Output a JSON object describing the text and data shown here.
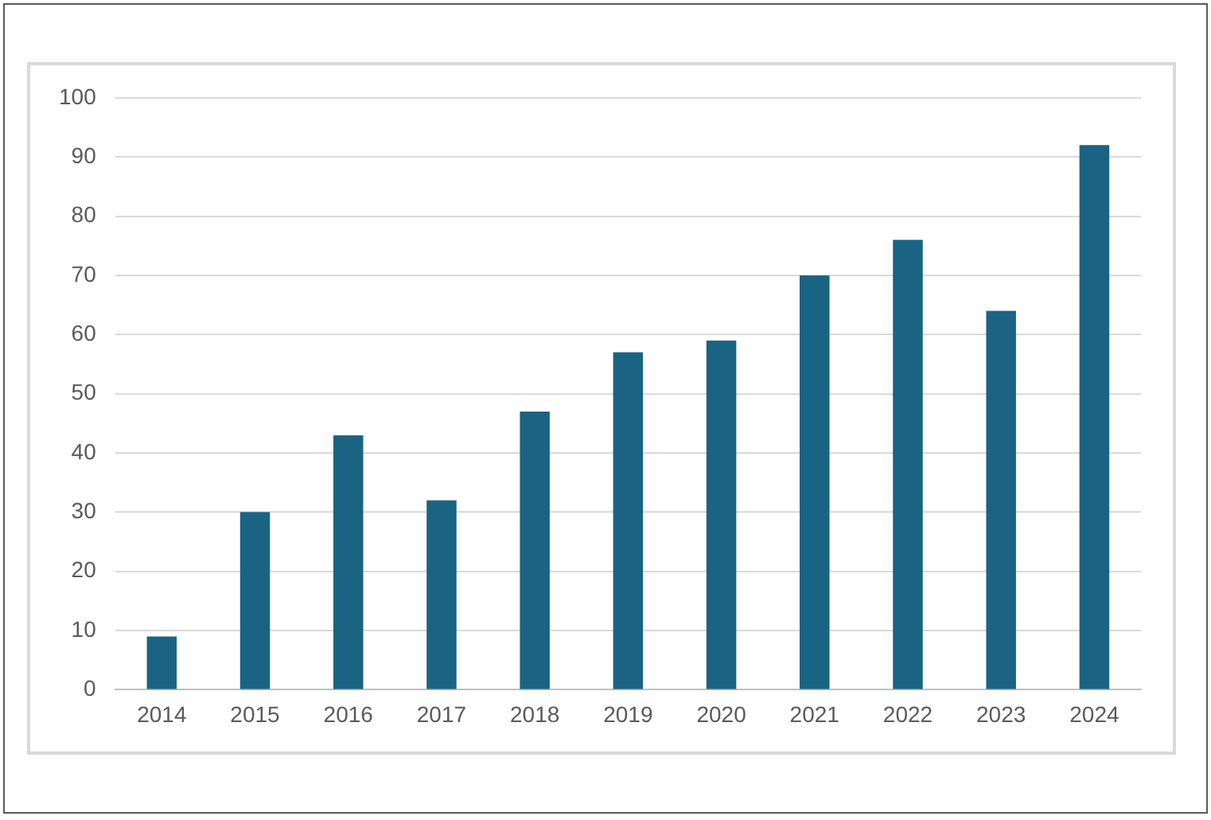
{
  "chart_data": {
    "type": "bar",
    "categories": [
      "2014",
      "2015",
      "2016",
      "2017",
      "2018",
      "2019",
      "2020",
      "2021",
      "2022",
      "2023",
      "2024"
    ],
    "values": [
      9,
      30,
      43,
      32,
      47,
      57,
      59,
      70,
      76,
      64,
      92
    ],
    "color": "#1b6383",
    "ylim": [
      0,
      100
    ],
    "yticks": [
      0,
      10,
      20,
      30,
      40,
      50,
      60,
      70,
      80,
      90,
      100
    ],
    "grid": "y"
  }
}
